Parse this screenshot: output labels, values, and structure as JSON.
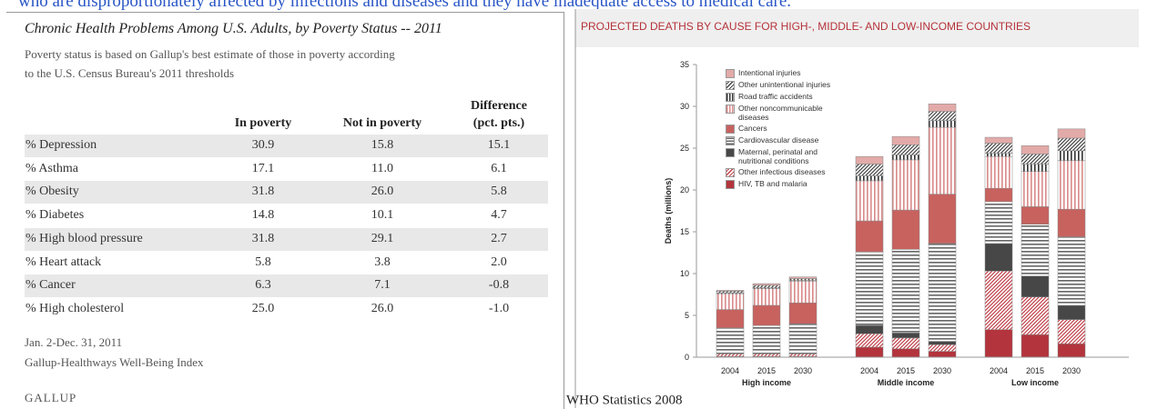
{
  "top_text": "who are disproportionately affected by infections and diseases and they have inadequate access to medical care.",
  "table": {
    "title": "Chronic Health Problems Among U.S. Adults, by Poverty Status -- 2011",
    "subtitle": [
      "Poverty status is based on Gallup's best estimate of those in poverty according",
      "to the U.S. Census Bureau's 2011 thresholds"
    ],
    "headers": [
      "In poverty",
      "Not in poverty",
      [
        "Difference",
        "(pct. pts.)"
      ]
    ],
    "rows": [
      [
        "% Depression",
        "30.9",
        "15.8",
        "15.1"
      ],
      [
        "% Asthma",
        "17.1",
        "11.0",
        "6.1"
      ],
      [
        "% Obesity",
        "31.8",
        "26.0",
        "5.8"
      ],
      [
        "% Diabetes",
        "14.8",
        "10.1",
        "4.7"
      ],
      [
        "% High blood pressure",
        "31.8",
        "29.1",
        "2.7"
      ],
      [
        "% Heart attack",
        "5.8",
        "3.8",
        "2.0"
      ],
      [
        "% Cancer",
        "6.3",
        "7.1",
        "-0.8"
      ],
      [
        "% High cholesterol",
        "25.0",
        "26.0",
        "-1.0"
      ]
    ],
    "footer": [
      "Jan. 2-Dec. 31, 2011",
      "Gallup-Healthways Well-Being Index"
    ],
    "brand": "GALLUP"
  },
  "chart_data": {
    "type": "stacked_bar",
    "title": "PROJECTED DEATHS BY CAUSE FOR HIGH-, MIDDLE- AND LOW-INCOME COUNTRIES",
    "y_label": "Deaths (millions)",
    "groups": [
      {
        "name": "High income",
        "categories": [
          "2004",
          "2015",
          "2030"
        ]
      },
      {
        "name": "Middle income",
        "categories": [
          "2004",
          "2015",
          "2030"
        ]
      },
      {
        "name": "Low income",
        "categories": [
          "2004",
          "2015",
          "2030"
        ]
      }
    ],
    "ylim": [
      0,
      35
    ],
    "yticks": [
      0,
      5,
      10,
      15,
      20,
      25,
      30,
      35
    ],
    "series": [
      {
        "name": "HIV, TB and malaria",
        "color": "#b3343c",
        "pattern": "solid",
        "values": [
          0.1,
          0.1,
          0.1,
          1.2,
          1.0,
          0.7,
          3.3,
          2.7,
          1.6
        ]
      },
      {
        "name": "Other infectious diseases",
        "color": "#c0414a",
        "pattern": "diagonal",
        "values": [
          0.3,
          0.3,
          0.3,
          1.6,
          1.3,
          0.8,
          7.0,
          4.5,
          2.9
        ]
      },
      {
        "name": "Maternal, perinatal and nutritional conditions",
        "color": "#474747",
        "pattern": "solid",
        "values": [
          0.1,
          0.1,
          0.1,
          1.0,
          0.6,
          0.4,
          3.3,
          2.5,
          1.7
        ]
      },
      {
        "name": "Cardiovascular disease",
        "color": "#666666",
        "pattern": "horizontal",
        "values": [
          3.0,
          3.3,
          3.5,
          8.8,
          10.0,
          11.7,
          5.0,
          6.2,
          8.2
        ]
      },
      {
        "name": "Cancers",
        "color": "#c7625f",
        "pattern": "solid",
        "values": [
          2.2,
          2.4,
          2.5,
          3.7,
          4.7,
          5.9,
          1.6,
          2.1,
          3.3
        ]
      },
      {
        "name": "Other noncommunicable diseases",
        "color": "#d98a8a",
        "pattern": "vertical",
        "values": [
          1.9,
          2.0,
          2.6,
          4.8,
          6.0,
          8.0,
          3.8,
          4.2,
          5.8
        ]
      },
      {
        "name": "Road traffic accidents",
        "color": "#333333",
        "pattern": "vertical",
        "values": [
          0.1,
          0.1,
          0.1,
          0.6,
          0.6,
          0.8,
          0.4,
          0.9,
          1.2
        ]
      },
      {
        "name": "Other unintentional injuries",
        "color": "#444444",
        "pattern": "diagonal",
        "values": [
          0.2,
          0.3,
          0.2,
          1.4,
          1.2,
          1.1,
          1.2,
          1.2,
          1.5
        ]
      },
      {
        "name": "Intentional injuries",
        "color": "#e2aaa8",
        "pattern": "solid",
        "values": [
          0.1,
          0.2,
          0.2,
          0.9,
          1.0,
          0.9,
          0.7,
          1.0,
          1.1
        ]
      }
    ],
    "caption": "WHO Statistics 2008"
  }
}
